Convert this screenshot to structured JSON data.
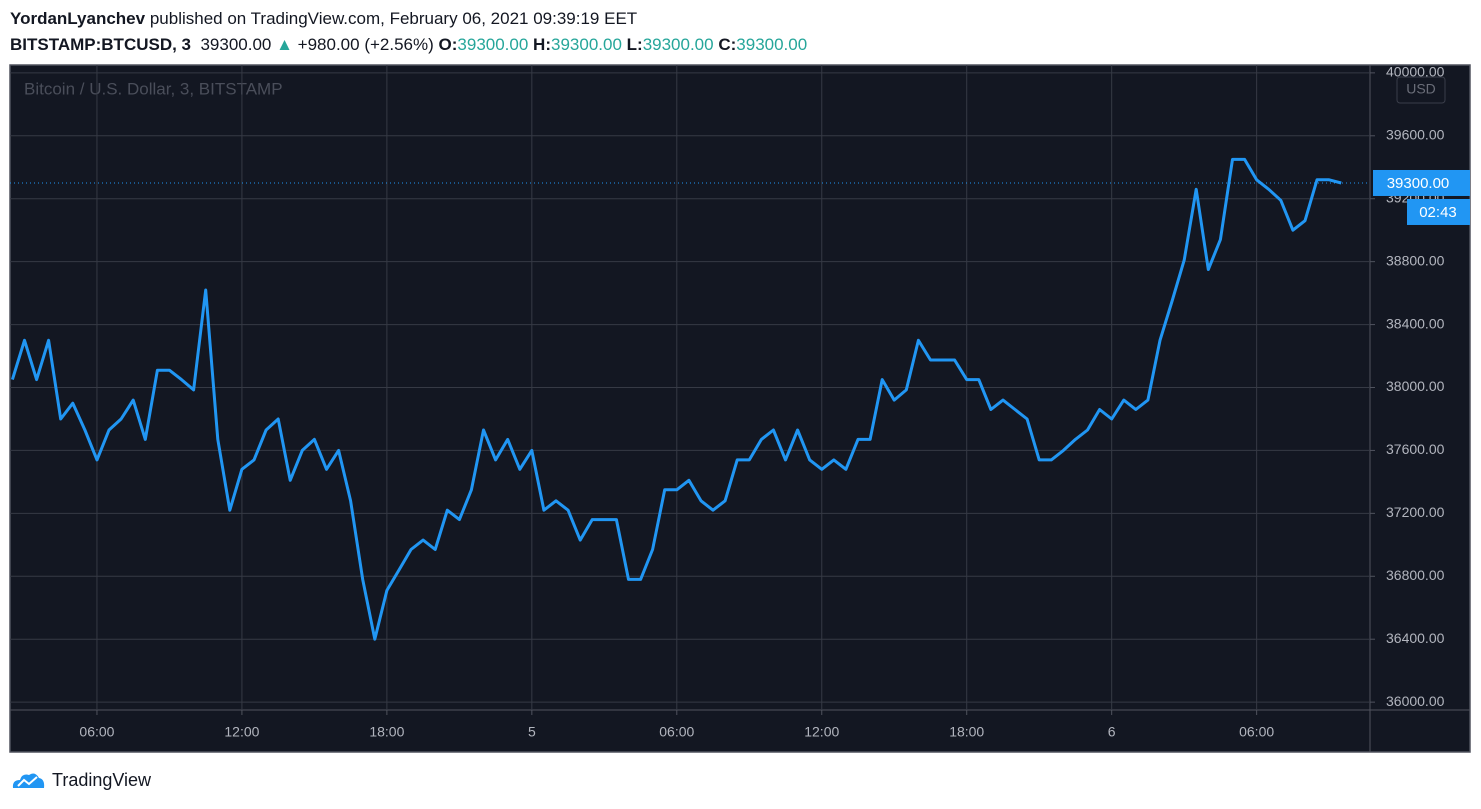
{
  "header": {
    "author": "YordanLyanchev",
    "published": "published on TradingView.com, February 06, 2021 09:39:19 EET",
    "symbol": "BITSTAMP:BTCUSD, 3",
    "price": "39300.00",
    "arrow": "▲",
    "change": "+980.00 (+2.56%)",
    "open_label": "O:",
    "open": "39300.00",
    "high_label": "H:",
    "high": "39300.00",
    "low_label": "L:",
    "low": "39300.00",
    "close_label": "C:",
    "close": "39300.00"
  },
  "footer": {
    "brand": "TradingView"
  },
  "chart_data": {
    "type": "line",
    "categories": [
      null,
      null,
      null,
      null,
      null,
      null,
      null,
      "06:00",
      null,
      null,
      null,
      null,
      null,
      null,
      null,
      null,
      null,
      null,
      null,
      "12:00",
      null,
      null,
      null,
      null,
      null,
      null,
      null,
      null,
      null,
      null,
      null,
      "18:00",
      null,
      null,
      null,
      null,
      null,
      null,
      null,
      null,
      null,
      null,
      null,
      "5",
      null,
      null,
      null,
      null,
      null,
      null,
      null,
      null,
      null,
      null,
      null,
      "06:00",
      null,
      null,
      null,
      null,
      null,
      null,
      null,
      null,
      null,
      null,
      null,
      "12:00",
      null,
      null,
      null,
      null,
      null,
      null,
      null,
      null,
      null,
      null,
      null,
      "18:00",
      null,
      null,
      null,
      null,
      null,
      null,
      null,
      null,
      null,
      null,
      null,
      "6",
      null,
      null,
      null,
      null,
      null,
      null,
      null,
      null,
      null,
      null,
      null,
      "06:00",
      null,
      null,
      null,
      null,
      null,
      null,
      null
    ],
    "series": [
      {
        "name": "Bitcoin / U.S. Dollar, 3, BITSTAMP",
        "color": "#2196f3",
        "values": [
          38050,
          38300,
          38050,
          38300,
          37800,
          37900,
          37730,
          37540,
          37730,
          37800,
          37920,
          37670,
          38110,
          38110,
          38050,
          37985,
          38620,
          37670,
          37220,
          37480,
          37540,
          37730,
          37800,
          37410,
          37600,
          37670,
          37480,
          37600,
          37280,
          36780,
          36400,
          36710,
          36840,
          36970,
          37030,
          36970,
          37220,
          37160,
          37350,
          37730,
          37540,
          37670,
          37480,
          37600,
          37220,
          37280,
          37220,
          37030,
          37160,
          37160,
          37160,
          36780,
          36780,
          36970,
          37350,
          37350,
          37410,
          37280,
          37220,
          37280,
          37540,
          37540,
          37670,
          37730,
          37540,
          37730,
          37540,
          37480,
          37540,
          37480,
          37670,
          37670,
          38050,
          37920,
          37985,
          38300,
          38175,
          38175,
          38175,
          38050,
          38050,
          37860,
          37920,
          37860,
          37800,
          37540,
          37540,
          37600,
          37670,
          37730,
          37860,
          37800,
          37920,
          37860,
          37920,
          38300,
          38550,
          38810,
          39260,
          38750,
          38940,
          39450,
          39450,
          39320,
          39260,
          39190,
          39000,
          39060,
          39320,
          39320,
          39300
        ]
      }
    ],
    "ylim": [
      35950,
      40050
    ],
    "yticks": [
      {
        "value": 36000,
        "label": "36000.00"
      },
      {
        "value": 36400,
        "label": "36400.00"
      },
      {
        "value": 36800,
        "label": "36800.00"
      },
      {
        "value": 37200,
        "label": "37200.00"
      },
      {
        "value": 37600,
        "label": "37600.00"
      },
      {
        "value": 38000,
        "label": "38000.00"
      },
      {
        "value": 38400,
        "label": "38400.00"
      },
      {
        "value": 38800,
        "label": "38800.00"
      },
      {
        "value": 39200,
        "label": "39200.00"
      },
      {
        "value": 39600,
        "label": "39600.00"
      },
      {
        "value": 40000,
        "label": "40000.00"
      }
    ],
    "currency": "USD",
    "last_price_label": "39300.00",
    "countdown": "02:43",
    "grid": true
  }
}
